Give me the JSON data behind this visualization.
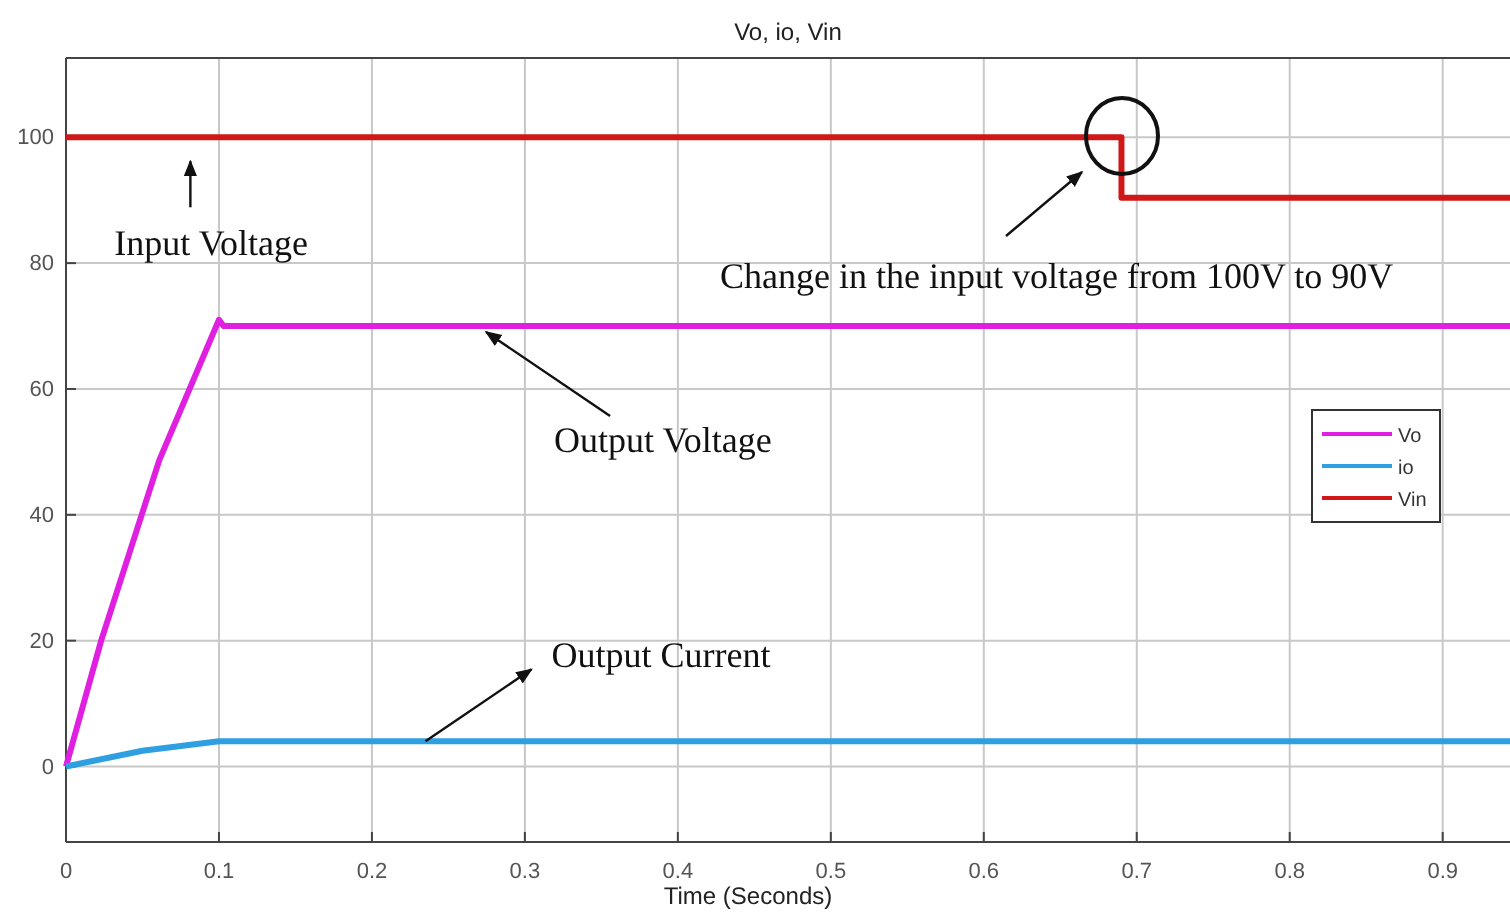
{
  "chart_data": {
    "type": "line",
    "title": "Vo, io, Vin",
    "xlabel": "Time (Seconds)",
    "xlim": [
      0,
      0.944
    ],
    "ylim": [
      -12,
      112.6
    ],
    "xticks": [
      0,
      0.1,
      0.2,
      0.3,
      0.4,
      0.5,
      0.6,
      0.7,
      0.8,
      0.9
    ],
    "yticks": [
      0,
      20,
      40,
      60,
      80,
      100
    ],
    "grid": true,
    "legend": "right",
    "line_style": "solid",
    "series": [
      {
        "name": "Vo",
        "color": "#e020e0",
        "x": [
          0,
          0.023,
          0.061,
          0.1,
          0.103,
          0.944
        ],
        "values": [
          0,
          20,
          48.7,
          71,
          70,
          70
        ]
      },
      {
        "name": "io",
        "color": "#2e9fe0",
        "x": [
          0,
          0.05,
          0.1,
          0.944
        ],
        "values": [
          0,
          2.5,
          4,
          4
        ]
      },
      {
        "name": "Vin",
        "color": "#d01818",
        "x": [
          0,
          0.69,
          0.69,
          0.944
        ],
        "values": [
          100,
          100,
          90.4,
          90.4
        ]
      }
    ],
    "annotations": [
      {
        "text": "Input Voltage",
        "x": 0.08,
        "y": 100
      },
      {
        "text": "Output Voltage",
        "x": 0.272,
        "y": 70
      },
      {
        "text": "Output Current",
        "x": 0.235,
        "y": 4
      },
      "Change in the input voltage from 100V to 90V"
    ]
  }
}
